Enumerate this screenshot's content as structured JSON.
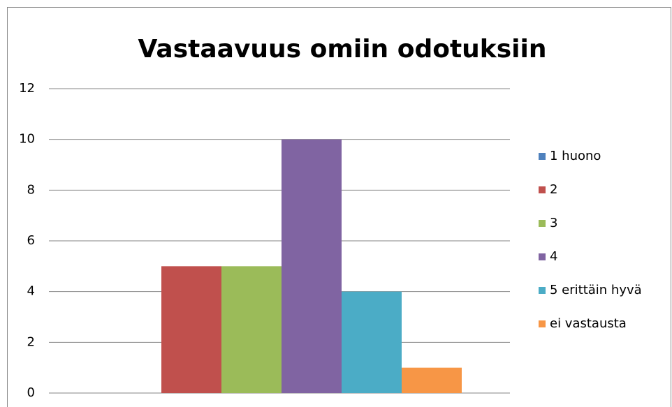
{
  "chart_data": {
    "type": "bar",
    "title": "Vastaavuus omiin odotuksiin",
    "categories": [
      null
    ],
    "series": [
      {
        "name": "1 huono",
        "color": "#4f81bd",
        "values": [
          0
        ]
      },
      {
        "name": "2",
        "color": "#c0504d",
        "values": [
          5
        ]
      },
      {
        "name": "3",
        "color": "#9bbb59",
        "values": [
          5
        ]
      },
      {
        "name": "4",
        "color": "#8064a2",
        "values": [
          10
        ]
      },
      {
        "name": "5 erittäin hyvä",
        "color": "#4bacc6",
        "values": [
          4
        ]
      },
      {
        "name": "ei vastausta",
        "color": "#f79646",
        "values": [
          1
        ]
      }
    ],
    "ylim": [
      0,
      12
    ],
    "yticks": [
      0,
      2,
      4,
      6,
      8,
      10,
      12
    ],
    "grid": true,
    "legend": "right"
  }
}
